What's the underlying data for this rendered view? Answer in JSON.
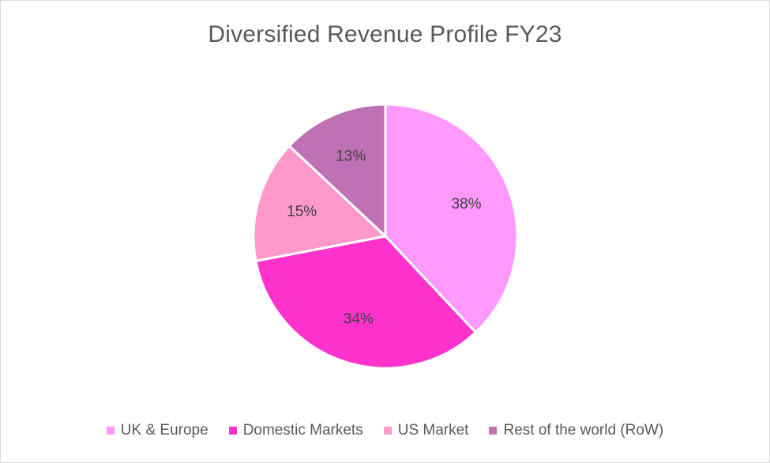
{
  "chart_data": {
    "type": "pie",
    "title": "Diversified Revenue Profile FY23",
    "legend_position": "bottom",
    "slices": [
      {
        "name": "UK & Europe",
        "value": 38,
        "label": "38%",
        "color": "#ff99ff"
      },
      {
        "name": "Domestic Markets",
        "value": 34,
        "label": "34%",
        "color": "#ff33cc"
      },
      {
        "name": "US Market",
        "value": 15,
        "label": "15%",
        "color": "#ff99cc"
      },
      {
        "name": "Rest of the world (RoW)",
        "value": 13,
        "label": "13%",
        "color": "#bf71b5"
      }
    ]
  }
}
